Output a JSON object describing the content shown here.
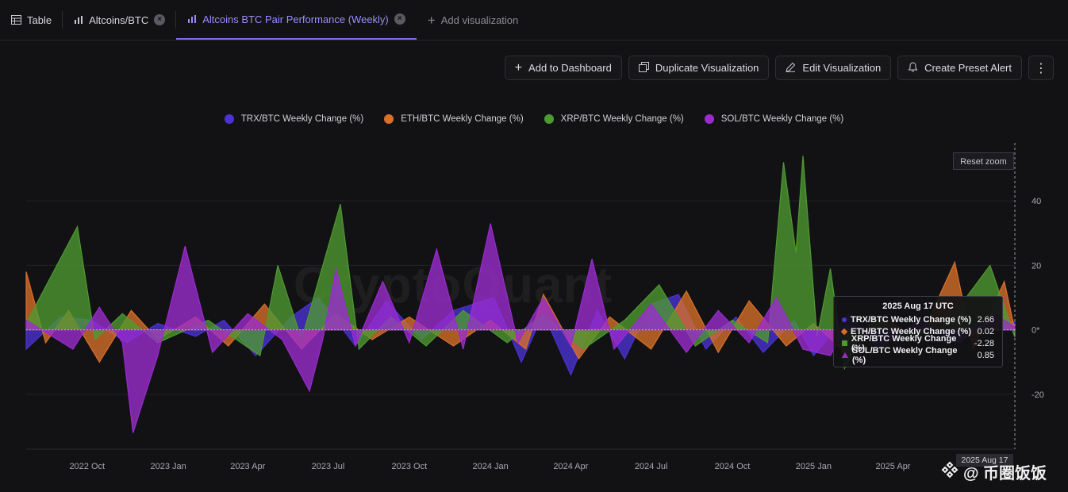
{
  "tabs": [
    {
      "label": "Table",
      "icon": "table-icon",
      "closable": false,
      "active": false
    },
    {
      "label": "Altcoins/BTC",
      "icon": "bar-chart-icon",
      "closable": true,
      "active": false
    },
    {
      "label": "Altcoins BTC Pair Performance (Weekly)",
      "icon": "bar-chart-icon",
      "closable": true,
      "active": true
    },
    {
      "label": "Add visualization",
      "icon": "plus-icon",
      "closable": false,
      "active": false
    }
  ],
  "toolbar": {
    "add_dashboard": "Add to Dashboard",
    "duplicate": "Duplicate Visualization",
    "edit": "Edit Visualization",
    "alert": "Create Preset Alert",
    "more": "⋮"
  },
  "reset_zoom": "Reset zoom",
  "watermark": "CryptoQuant",
  "colors": {
    "trx": "#4a32d4",
    "eth": "#d9702a",
    "xrp": "#4e9a32",
    "sol": "#9b2bd0"
  },
  "tooltip": {
    "title": "2025 Aug 17 UTC",
    "rows": [
      {
        "label": "TRX/BTC Weekly Change (%)",
        "value": "2.66"
      },
      {
        "label": "ETH/BTC Weekly Change (%)",
        "value": "0.02"
      },
      {
        "label": "XRP/BTC Weekly Change (%)",
        "value": "-2.28"
      },
      {
        "label": "SOL/BTC Weekly Change (%)",
        "value": "0.85"
      }
    ]
  },
  "crosshair_date": "2025 Aug 17",
  "corner_mark": "@ 币圈饭饭",
  "chart_data": {
    "type": "area",
    "title": "",
    "xlabel": "",
    "ylabel": "",
    "ylim": [
      -37,
      58
    ],
    "y_ticks": [
      40,
      20,
      "0*",
      -20
    ],
    "x_tick_labels": [
      "2022 Oct",
      "2023 Jan",
      "2023 Apr",
      "2023 Jul",
      "2023 Oct",
      "2024 Jan",
      "2024 Apr",
      "2024 Jul",
      "2024 Oct",
      "2025 Jan",
      "2025 Apr"
    ],
    "x_range": [
      "2022-07-24",
      "2025-08-17"
    ],
    "legend_position": "top-center",
    "grid": true,
    "series": [
      {
        "name": "TRX/BTC Weekly Change (%)",
        "color": "#4a32d4",
        "points": [
          [
            "2022-07-24",
            -6
          ],
          [
            "2022-09-01",
            4
          ],
          [
            "2022-10-06",
            3
          ],
          [
            "2022-11-15",
            -4
          ],
          [
            "2022-12-20",
            2
          ],
          [
            "2023-02-01",
            -2
          ],
          [
            "2023-03-05",
            3
          ],
          [
            "2023-04-10",
            -8
          ],
          [
            "2023-05-20",
            4
          ],
          [
            "2023-06-20",
            10
          ],
          [
            "2023-08-01",
            -5
          ],
          [
            "2023-09-05",
            9
          ],
          [
            "2023-10-15",
            -3
          ],
          [
            "2023-11-20",
            6
          ],
          [
            "2024-01-05",
            10
          ],
          [
            "2024-02-05",
            -10
          ],
          [
            "2024-03-01",
            5
          ],
          [
            "2024-04-01",
            -14
          ],
          [
            "2024-05-01",
            6
          ],
          [
            "2024-06-01",
            -9
          ],
          [
            "2024-07-01",
            8
          ],
          [
            "2024-08-01",
            11
          ],
          [
            "2024-09-01",
            -6
          ],
          [
            "2024-10-05",
            4
          ],
          [
            "2024-11-05",
            -7
          ],
          [
            "2024-12-10",
            3
          ],
          [
            "2025-01-01",
            -8
          ],
          [
            "2025-02-10",
            5
          ],
          [
            "2025-03-15",
            -6
          ],
          [
            "2025-05-01",
            3
          ],
          [
            "2025-06-10",
            -4
          ],
          [
            "2025-07-15",
            2
          ],
          [
            "2025-08-17",
            2.66
          ]
        ]
      },
      {
        "name": "ETH/BTC Weekly Change (%)",
        "color": "#d9702a",
        "points": [
          [
            "2022-07-24",
            18
          ],
          [
            "2022-08-15",
            -4
          ],
          [
            "2022-09-10",
            6
          ],
          [
            "2022-10-15",
            -10
          ],
          [
            "2022-11-20",
            6
          ],
          [
            "2022-12-20",
            -3
          ],
          [
            "2023-02-01",
            4
          ],
          [
            "2023-03-10",
            -5
          ],
          [
            "2023-04-20",
            8
          ],
          [
            "2023-06-01",
            -6
          ],
          [
            "2023-07-10",
            5
          ],
          [
            "2023-08-20",
            -3
          ],
          [
            "2023-10-01",
            4
          ],
          [
            "2023-11-20",
            -5
          ],
          [
            "2024-01-01",
            3
          ],
          [
            "2024-02-10",
            -6
          ],
          [
            "2024-03-01",
            11
          ],
          [
            "2024-04-10",
            -9
          ],
          [
            "2024-05-15",
            4
          ],
          [
            "2024-07-01",
            -6
          ],
          [
            "2024-08-10",
            12
          ],
          [
            "2024-09-15",
            -7
          ],
          [
            "2024-10-20",
            9
          ],
          [
            "2024-12-01",
            -5
          ],
          [
            "2025-01-01",
            2
          ],
          [
            "2025-02-10",
            -8
          ],
          [
            "2025-03-20",
            4
          ],
          [
            "2025-05-01",
            -3
          ],
          [
            "2025-06-10",
            21
          ],
          [
            "2025-07-01",
            -6
          ],
          [
            "2025-08-05",
            15
          ],
          [
            "2025-08-17",
            0.02
          ]
        ]
      },
      {
        "name": "XRP/BTC Weekly Change (%)",
        "color": "#4e9a32",
        "points": [
          [
            "2022-07-24",
            2
          ],
          [
            "2022-09-20",
            32
          ],
          [
            "2022-10-10",
            -3
          ],
          [
            "2022-11-10",
            5
          ],
          [
            "2022-12-20",
            -4
          ],
          [
            "2023-02-15",
            3
          ],
          [
            "2023-04-15",
            -8
          ],
          [
            "2023-05-05",
            20
          ],
          [
            "2023-06-01",
            -3
          ],
          [
            "2023-07-15",
            39
          ],
          [
            "2023-08-05",
            -6
          ],
          [
            "2023-09-10",
            4
          ],
          [
            "2023-10-20",
            -5
          ],
          [
            "2023-12-01",
            6
          ],
          [
            "2024-01-20",
            -4
          ],
          [
            "2024-03-01",
            5
          ],
          [
            "2024-04-15",
            -6
          ],
          [
            "2024-06-01",
            3
          ],
          [
            "2024-07-10",
            14
          ],
          [
            "2024-08-20",
            -5
          ],
          [
            "2024-10-01",
            3
          ],
          [
            "2024-11-10",
            -4
          ],
          [
            "2024-11-28",
            52
          ],
          [
            "2024-12-12",
            24
          ],
          [
            "2024-12-20",
            54
          ],
          [
            "2025-01-05",
            -2
          ],
          [
            "2025-01-20",
            19
          ],
          [
            "2025-02-05",
            -12
          ],
          [
            "2025-03-10",
            4
          ],
          [
            "2025-04-20",
            -3
          ],
          [
            "2025-06-01",
            2
          ],
          [
            "2025-07-20",
            20
          ],
          [
            "2025-08-17",
            -2.28
          ]
        ]
      },
      {
        "name": "SOL/BTC Weekly Change (%)",
        "color": "#9b2bd0",
        "points": [
          [
            "2022-07-24",
            3
          ],
          [
            "2022-09-15",
            -6
          ],
          [
            "2022-10-15",
            7
          ],
          [
            "2022-11-10",
            -4
          ],
          [
            "2022-11-22",
            -32
          ],
          [
            "2022-12-20",
            -8
          ],
          [
            "2023-01-20",
            26
          ],
          [
            "2023-02-20",
            -7
          ],
          [
            "2023-04-01",
            5
          ],
          [
            "2023-05-10",
            -3
          ],
          [
            "2023-06-10",
            -19
          ],
          [
            "2023-06-25",
            -3
          ],
          [
            "2023-07-10",
            19
          ],
          [
            "2023-08-01",
            -5
          ],
          [
            "2023-09-01",
            15
          ],
          [
            "2023-10-01",
            -4
          ],
          [
            "2023-11-01",
            25
          ],
          [
            "2023-12-01",
            -6
          ],
          [
            "2024-01-01",
            33
          ],
          [
            "2024-02-01",
            -4
          ],
          [
            "2024-03-01",
            10
          ],
          [
            "2024-04-01",
            -5
          ],
          [
            "2024-04-25",
            22
          ],
          [
            "2024-05-20",
            -6
          ],
          [
            "2024-07-01",
            8
          ],
          [
            "2024-08-10",
            -7
          ],
          [
            "2024-09-15",
            6
          ],
          [
            "2024-10-20",
            -4
          ],
          [
            "2024-11-20",
            10
          ],
          [
            "2024-12-20",
            -6
          ],
          [
            "2025-01-20",
            -8
          ],
          [
            "2025-02-10",
            2
          ],
          [
            "2025-03-20",
            -5
          ],
          [
            "2025-05-01",
            3
          ],
          [
            "2025-06-15",
            -4
          ],
          [
            "2025-07-25",
            5
          ],
          [
            "2025-08-17",
            0.85
          ]
        ]
      }
    ]
  }
}
